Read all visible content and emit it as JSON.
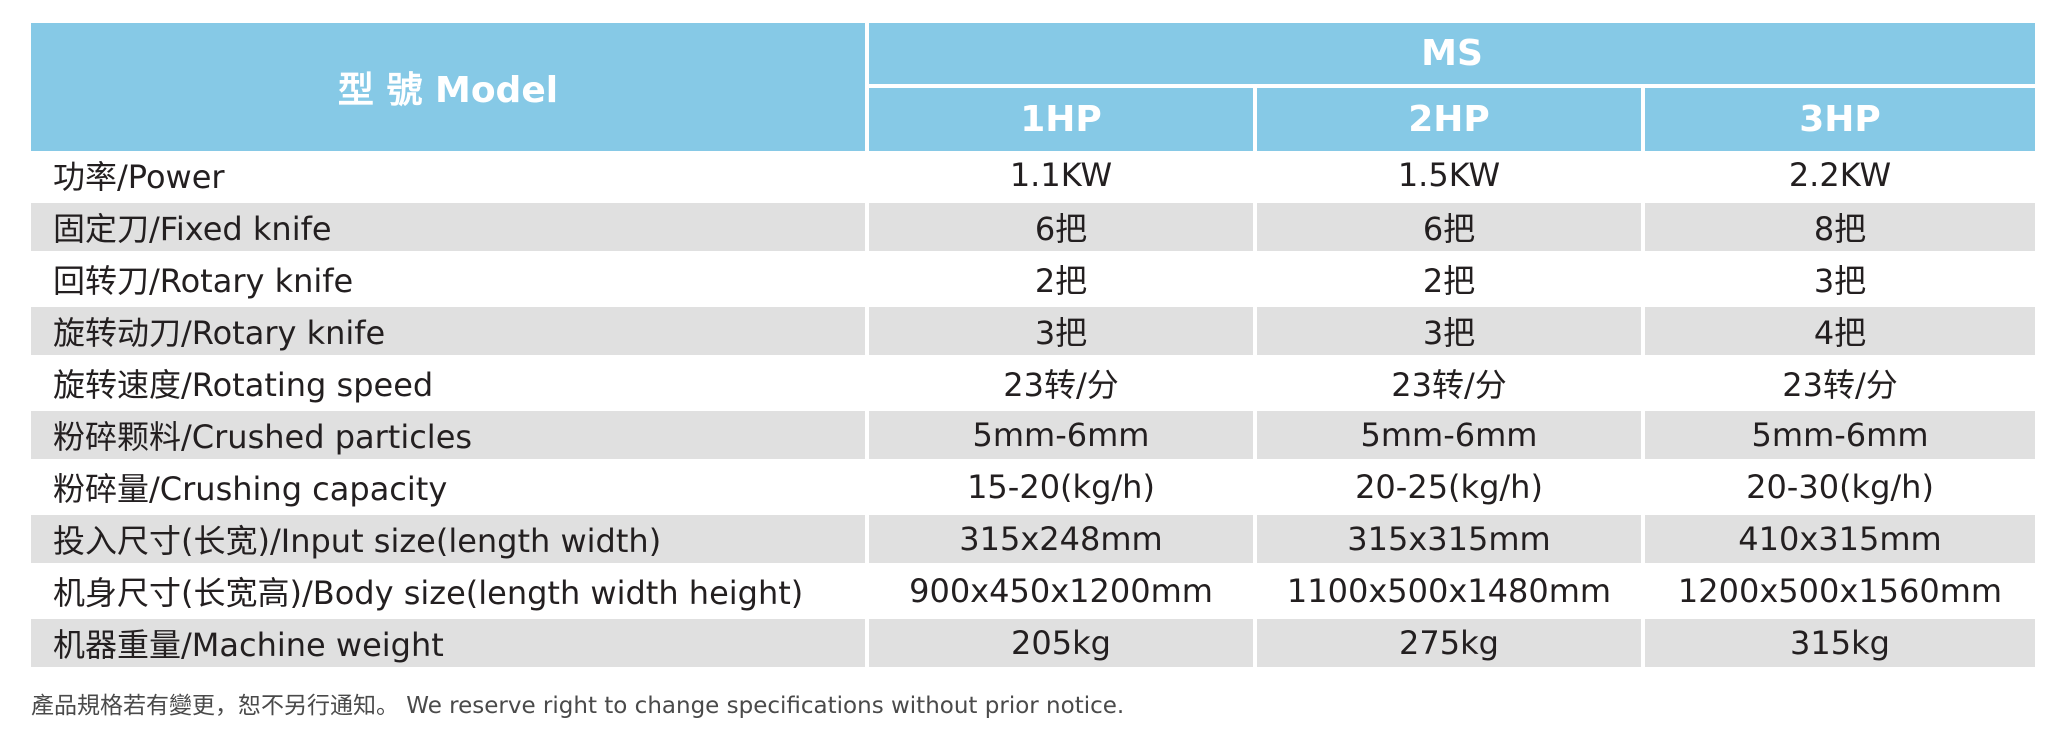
{
  "header": {
    "model_label": "型 號 Model",
    "series": "MS",
    "hp_columns": [
      "1HP",
      "2HP",
      "3HP"
    ]
  },
  "rows": [
    {
      "label": "功率/Power",
      "values": [
        "1.1KW",
        "1.5KW",
        "2.2KW"
      ]
    },
    {
      "label": "固定刀/Fixed knife",
      "values": [
        "6把",
        "6把",
        "8把"
      ]
    },
    {
      "label": "回转刀/Rotary knife",
      "values": [
        "2把",
        "2把",
        "3把"
      ]
    },
    {
      "label": "旋转动刀/Rotary knife",
      "values": [
        "3把",
        "3把",
        "4把"
      ]
    },
    {
      "label": "旋转速度/Rotating speed",
      "values": [
        "23转/分",
        "23转/分",
        "23转/分"
      ]
    },
    {
      "label": "粉碎颗料/Crushed particles",
      "values": [
        "5mm-6mm",
        "5mm-6mm",
        "5mm-6mm"
      ]
    },
    {
      "label": "粉碎量/Crushing capacity",
      "values": [
        "15-20(kg/h)",
        "20-25(kg/h)",
        "20-30(kg/h)"
      ]
    },
    {
      "label": "投入尺寸(长宽)/Input size(length width)",
      "values": [
        "315x248mm",
        "315x315mm",
        "410x315mm"
      ]
    },
    {
      "label": "机身尺寸(长宽高)/Body size(length width height)",
      "values": [
        "900x450x1200mm",
        "1100x500x1480mm",
        "1200x500x1560mm"
      ]
    },
    {
      "label": "机器重量/Machine weight",
      "values": [
        "205kg",
        "275kg",
        "315kg"
      ]
    }
  ],
  "footnote": "產品規格若有變更，恕不另行通知。 We reserve right to change specifications without prior notice.",
  "colors": {
    "header_bg": "#86c9e6",
    "header_text": "#ffffff",
    "row_shade": "#e0e0e0",
    "text": "#231f20"
  }
}
